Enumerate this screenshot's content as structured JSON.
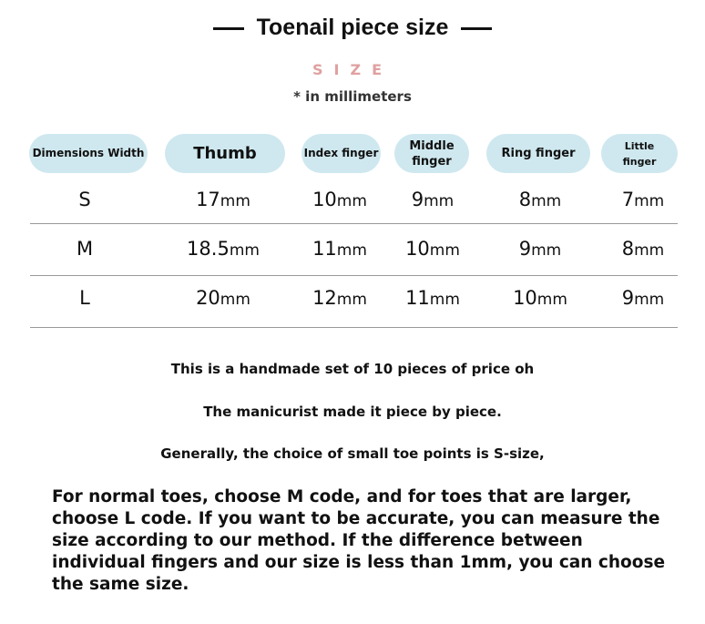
{
  "title": "Toenail piece size",
  "size_label": "SIZE",
  "unit_note": "* in millimeters",
  "table": {
    "headers": [
      "Dimensions Width",
      "Thumb",
      "Index finger",
      "Middle finger",
      "Ring finger",
      "Little finger"
    ],
    "unit": "mm",
    "rows": [
      {
        "size": "S",
        "values": [
          "17",
          "10",
          "9",
          "8",
          "7"
        ]
      },
      {
        "size": "M",
        "values": [
          "18.5",
          "11",
          "10",
          "9",
          "8"
        ]
      },
      {
        "size": "L",
        "values": [
          "20",
          "12",
          "11",
          "10",
          "9"
        ]
      }
    ]
  },
  "notes": [
    "This is a handmade set of 10 pieces of price oh",
    "The manicurist made it piece by piece.",
    "Generally, the choice of small toe points is S-size,"
  ],
  "paragraph": "For normal toes, choose M code, and for toes that are larger, choose L code. If you want to be accurate, you can measure the size according to our method. If the difference between individual fingers and our size is less than 1mm, you can choose the same size.",
  "colors": {
    "pill": "#cfe8ef",
    "size_label": "#e0a0a0"
  }
}
